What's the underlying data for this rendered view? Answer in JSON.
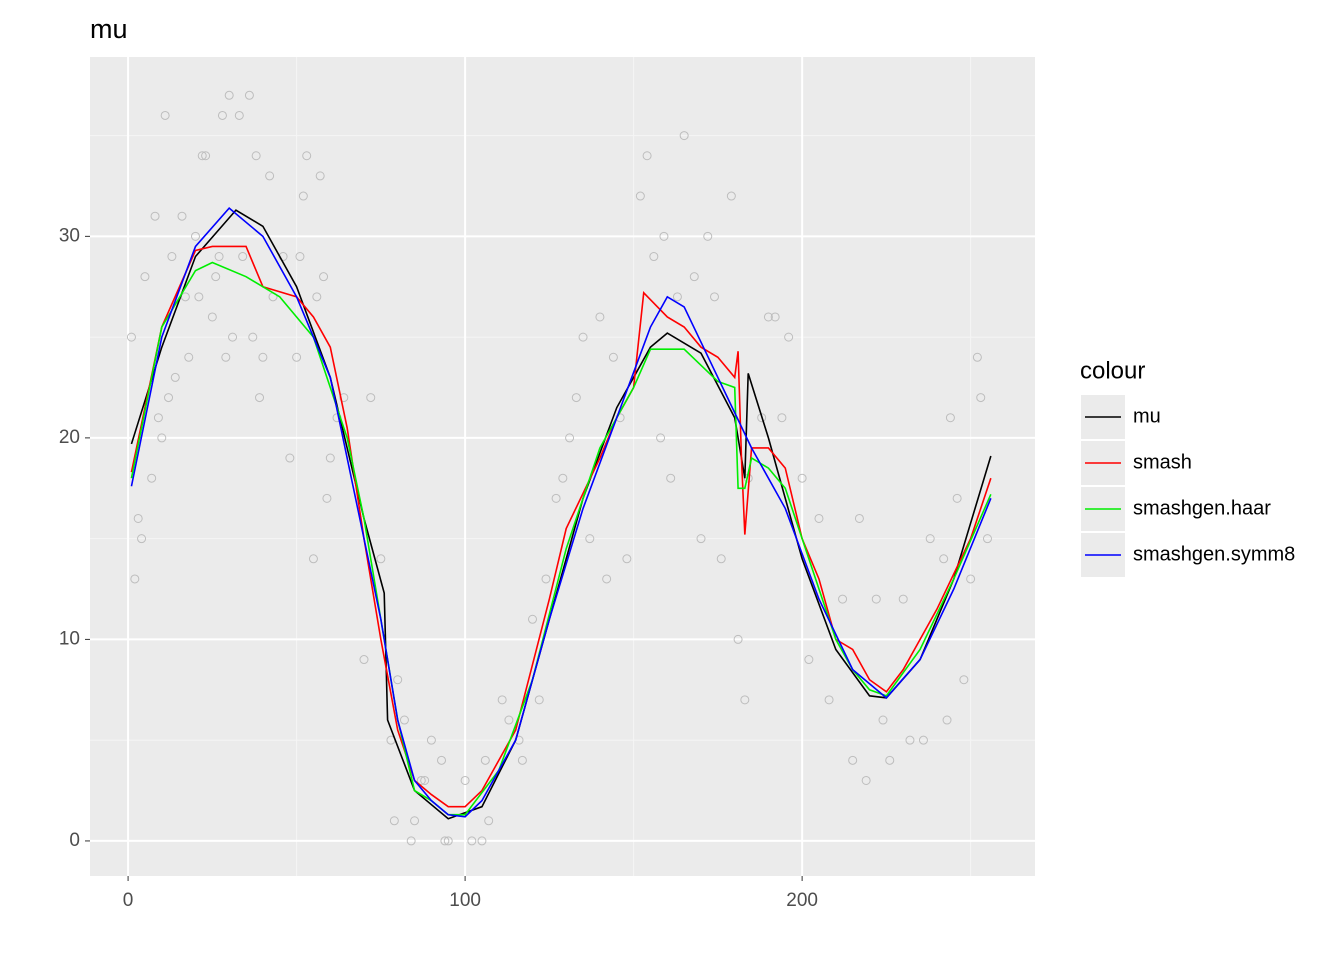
{
  "chart_data": {
    "type": "line",
    "title": "mu",
    "legend_title": "colour",
    "legend_position": "right",
    "xlim": [
      -11.3,
      269.1
    ],
    "ylim": [
      -1.74,
      38.9
    ],
    "xticks": [
      0,
      100,
      200
    ],
    "yticks": [
      0,
      10,
      20,
      30
    ],
    "xminor": [
      50,
      150,
      250
    ],
    "yminor": [
      5,
      15,
      25,
      35
    ],
    "grid": true,
    "points": {
      "color": "#bdbdbd",
      "x": [
        1,
        2,
        3,
        4,
        5,
        7,
        8,
        9,
        10,
        11,
        12,
        13,
        14,
        16,
        17,
        18,
        20,
        21,
        22,
        23,
        25,
        26,
        27,
        28,
        29,
        30,
        31,
        33,
        34,
        36,
        37,
        38,
        39,
        40,
        42,
        43,
        46,
        48,
        50,
        51,
        52,
        53,
        55,
        56,
        57,
        58,
        59,
        60,
        62,
        64,
        70,
        72,
        75,
        78,
        79,
        80,
        82,
        84,
        85,
        87,
        88,
        90,
        93,
        94,
        95,
        100,
        102,
        105,
        106,
        107,
        111,
        113,
        116,
        117,
        120,
        122,
        124,
        127,
        129,
        131,
        133,
        135,
        137,
        140,
        142,
        144,
        146,
        148,
        152,
        154,
        156,
        158,
        159,
        161,
        163,
        165,
        168,
        170,
        172,
        174,
        176,
        179,
        181,
        183,
        184,
        188,
        190,
        192,
        194,
        196,
        200,
        202,
        205,
        208,
        212,
        215,
        217,
        219,
        222,
        224,
        226,
        230,
        232,
        236,
        238,
        242,
        243,
        244,
        246,
        248,
        250,
        252,
        253,
        255
      ],
      "y": [
        25,
        13,
        16,
        15,
        28,
        18,
        31,
        21,
        20,
        36,
        22,
        29,
        23,
        31,
        27,
        24,
        30,
        27,
        34,
        34,
        26,
        28,
        29,
        36,
        24,
        37,
        25,
        36,
        29,
        37,
        25,
        34,
        22,
        24,
        33,
        27,
        29,
        19,
        24,
        29,
        32,
        34,
        14,
        27,
        33,
        28,
        17,
        19,
        21,
        22,
        9,
        22,
        14,
        5,
        1,
        8,
        6,
        0,
        1,
        3,
        3,
        5,
        4,
        0,
        0,
        3,
        0,
        0,
        4,
        1,
        7,
        6,
        5,
        4,
        11,
        7,
        13,
        17,
        18,
        20,
        22,
        25,
        15,
        26,
        13,
        24,
        21,
        14,
        32,
        34,
        29,
        20,
        30,
        18,
        27,
        35,
        28,
        15,
        30,
        27,
        14,
        32,
        10,
        7,
        18,
        21,
        26,
        26,
        21,
        25,
        18,
        9,
        16,
        7,
        12,
        4,
        16,
        3,
        12,
        6,
        4,
        12,
        5,
        5,
        15,
        14,
        6,
        21,
        17,
        8,
        13,
        24,
        22,
        15
      ]
    },
    "series": [
      {
        "name": "mu",
        "color": "#000000",
        "x": [
          1,
          10,
          20,
          32,
          40,
          50,
          60,
          70,
          76,
          77,
          85,
          95,
          105,
          115,
          125,
          135,
          145,
          155,
          160,
          170,
          180,
          183,
          184,
          190,
          200,
          210,
          220,
          225,
          235,
          245,
          256
        ],
        "values": [
          19.7,
          24.5,
          29,
          31.3,
          30.5,
          27.5,
          23,
          16,
          12.3,
          6,
          2.5,
          1.1,
          1.7,
          5,
          11,
          17,
          21.5,
          24.5,
          25.2,
          24.2,
          21,
          18,
          23.2,
          20,
          14,
          9.5,
          7.2,
          7.1,
          9,
          13,
          19.1
        ]
      },
      {
        "name": "smash",
        "color": "#ff0000",
        "x": [
          1,
          10,
          20,
          25,
          35,
          40,
          50,
          55,
          60,
          65,
          70,
          75,
          80,
          85,
          90,
          95,
          100,
          105,
          115,
          125,
          130,
          140,
          145,
          150,
          153,
          160,
          165,
          170,
          175,
          180,
          181,
          182,
          183,
          185,
          190,
          195,
          200,
          205,
          210,
          215,
          220,
          225,
          230,
          240,
          250,
          256
        ],
        "values": [
          18.3,
          25.5,
          29.3,
          29.5,
          29.5,
          27.5,
          27,
          26,
          24.5,
          20.5,
          15,
          10,
          5.5,
          3,
          2.3,
          1.7,
          1.7,
          2.5,
          5.5,
          12,
          15.5,
          19,
          21,
          22.5,
          27.2,
          26,
          25.5,
          24.5,
          24,
          23,
          24.3,
          19,
          15.2,
          19.5,
          19.5,
          18.5,
          15,
          13,
          10,
          9.5,
          8,
          7.4,
          8.5,
          11.5,
          15,
          18
        ]
      },
      {
        "name": "smashgen.haar",
        "color": "#00ee00",
        "x": [
          1,
          10,
          20,
          25,
          35,
          45,
          55,
          65,
          70,
          75,
          80,
          85,
          90,
          95,
          100,
          110,
          120,
          130,
          140,
          150,
          155,
          165,
          175,
          180,
          181,
          183,
          185,
          190,
          195,
          200,
          210,
          215,
          220,
          225,
          235,
          245,
          256
        ],
        "values": [
          18,
          25.5,
          28.3,
          28.7,
          28,
          27,
          25,
          20,
          16,
          11,
          6,
          2.5,
          2,
          1.3,
          1.3,
          3.5,
          8,
          14.5,
          19.5,
          22.5,
          24.4,
          24.4,
          22.8,
          22.5,
          17.5,
          17.5,
          19,
          18.5,
          17.5,
          15,
          10,
          8.5,
          7.5,
          7.2,
          9.5,
          13,
          17.2
        ]
      },
      {
        "name": "smashgen.symm8",
        "color": "#0000ff",
        "x": [
          1,
          10,
          20,
          30,
          40,
          50,
          60,
          70,
          75,
          80,
          85,
          90,
          95,
          100,
          105,
          115,
          125,
          135,
          145,
          155,
          160,
          165,
          175,
          185,
          195,
          205,
          215,
          225,
          235,
          245,
          256
        ],
        "values": [
          17.6,
          25,
          29.5,
          31.4,
          30,
          27,
          23,
          15,
          11,
          6,
          3,
          2,
          1.3,
          1.2,
          2,
          5,
          11,
          16.5,
          21,
          25.5,
          27,
          26.5,
          23,
          19.5,
          16.5,
          12,
          8.5,
          7.1,
          9,
          12.5,
          17
        ]
      }
    ]
  }
}
